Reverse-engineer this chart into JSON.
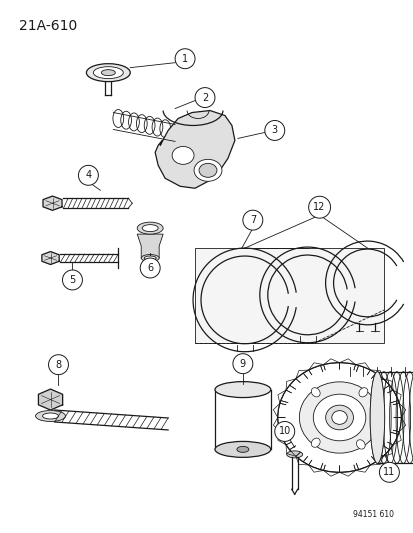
{
  "title": "21A-610",
  "background_color": "#ffffff",
  "line_color": "#1a1a1a",
  "figure_number": "94151 610",
  "fig_w": 4.14,
  "fig_h": 5.33
}
